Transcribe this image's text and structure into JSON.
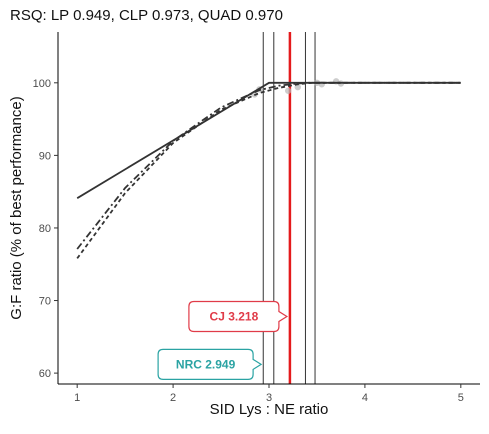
{
  "chart_data": {
    "type": "line",
    "title": "RSQ: LP 0.949, CLP 0.973, QUAD 0.970",
    "xlabel": "SID Lys : NE ratio",
    "ylabel": "G:F ratio (% of best performance)",
    "xlim": [
      0.8,
      5.2
    ],
    "ylim": [
      58.5,
      107
    ],
    "x_ticks": [
      "1",
      "2",
      "3",
      "4",
      "5"
    ],
    "y_ticks": [
      "60",
      "70",
      "80",
      "90",
      "100"
    ],
    "grid": false,
    "series": [
      {
        "model": "LP",
        "style": "solid",
        "color": "#333333",
        "x": [
          1.0,
          3.0,
          5.0
        ],
        "y": [
          84.1,
          100.0,
          100.0
        ]
      },
      {
        "model": "CLP",
        "style": "dash-dot",
        "color": "#333333",
        "x": [
          1.0,
          1.5,
          2.0,
          2.5,
          2.9,
          3.1,
          3.3,
          3.4,
          5.0
        ],
        "y": [
          77.1,
          85.5,
          92.0,
          96.6,
          99.0,
          99.6,
          99.9,
          100.0,
          100.0
        ]
      },
      {
        "model": "QUAD",
        "style": "dashed",
        "color": "#333333",
        "x": [
          1.0,
          1.5,
          2.0,
          2.5,
          2.9,
          3.1,
          3.3,
          3.45,
          5.0
        ],
        "y": [
          75.8,
          84.8,
          91.7,
          96.3,
          98.6,
          99.3,
          99.8,
          100.0,
          100.0
        ]
      }
    ],
    "points": [
      {
        "x": 2.85,
        "y": 98.4
      },
      {
        "x": 2.9,
        "y": 99.1
      },
      {
        "x": 3.2,
        "y": 98.9
      },
      {
        "x": 3.3,
        "y": 99.4
      },
      {
        "x": 3.5,
        "y": 100.0
      },
      {
        "x": 3.55,
        "y": 99.8
      },
      {
        "x": 3.7,
        "y": 100.2
      },
      {
        "x": 3.75,
        "y": 99.9
      }
    ],
    "vlines": [
      {
        "x": 2.94,
        "color": "#333333",
        "role": "ci"
      },
      {
        "x": 3.05,
        "color": "#333333",
        "role": "ci"
      },
      {
        "x": 3.38,
        "color": "#333333",
        "role": "ci"
      },
      {
        "x": 3.48,
        "color": "#333333",
        "role": "ci"
      },
      {
        "x": 3.218,
        "color": "#e41a1c",
        "role": "estimate"
      }
    ],
    "annotations": [
      {
        "id": "cj",
        "label": "CJ 3.218",
        "color": "#e03b48",
        "x": 3.218,
        "y": 67.8
      },
      {
        "id": "nrc",
        "label": "NRC 2.949",
        "color": "#2aa3a3",
        "x": 2.949,
        "y": 61.2
      }
    ]
  }
}
